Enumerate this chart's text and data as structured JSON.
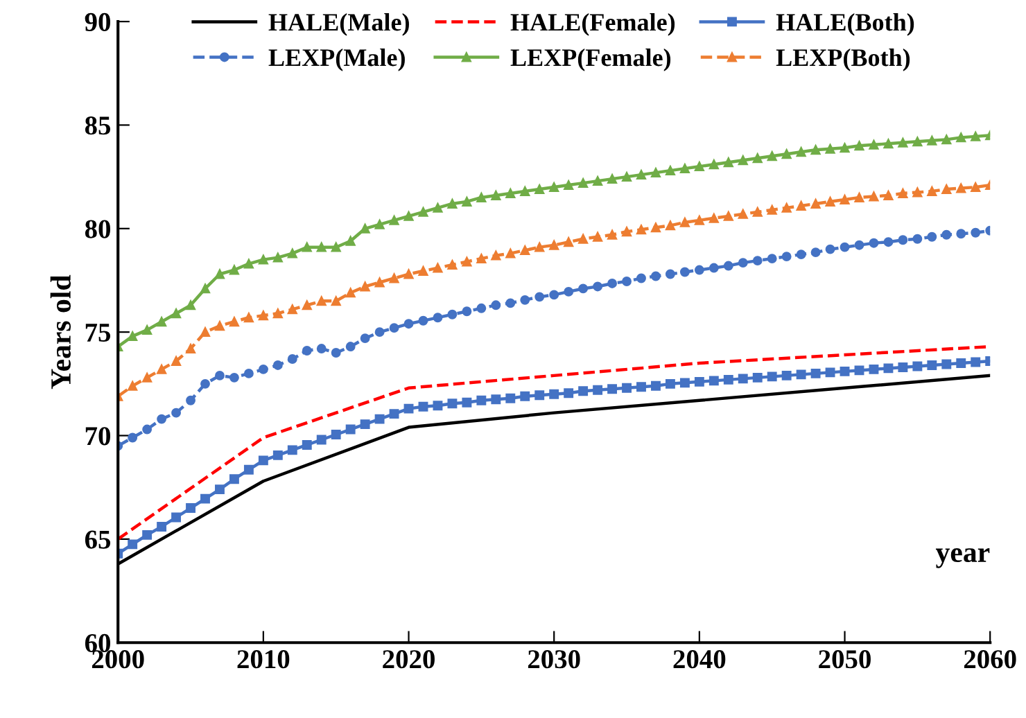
{
  "chart_data": {
    "type": "line",
    "ylabel": "Years old",
    "xlabel": "year",
    "xlim": [
      2000,
      2060
    ],
    "ylim": [
      60,
      90
    ],
    "xticks": [
      2000,
      2010,
      2020,
      2030,
      2040,
      2050,
      2060
    ],
    "yticks": [
      60,
      65,
      70,
      75,
      80,
      85,
      90
    ],
    "grid": false,
    "legend": "top",
    "x": [
      2000,
      2001,
      2002,
      2003,
      2004,
      2005,
      2006,
      2007,
      2008,
      2009,
      2010,
      2011,
      2012,
      2013,
      2014,
      2015,
      2016,
      2017,
      2018,
      2019,
      2020,
      2021,
      2022,
      2023,
      2024,
      2025,
      2026,
      2027,
      2028,
      2029,
      2030,
      2031,
      2032,
      2033,
      2034,
      2035,
      2036,
      2037,
      2038,
      2039,
      2040,
      2041,
      2042,
      2043,
      2044,
      2045,
      2046,
      2047,
      2048,
      2049,
      2050,
      2051,
      2052,
      2053,
      2054,
      2055,
      2056,
      2057,
      2058,
      2059,
      2060
    ],
    "series": [
      {
        "name": "HALE(Male)",
        "color": "#000000",
        "line_style": "solid",
        "marker": "none",
        "x": [
          2000,
          2010,
          2020,
          2030,
          2040,
          2050,
          2060
        ],
        "values": [
          63.8,
          67.8,
          70.4,
          71.1,
          71.7,
          72.3,
          72.9
        ]
      },
      {
        "name": "HALE(Female)",
        "color": "#ff0000",
        "line_style": "dashed",
        "marker": "none",
        "x": [
          2000,
          2010,
          2020,
          2030,
          2040,
          2050,
          2060
        ],
        "values": [
          65.0,
          69.9,
          72.3,
          72.9,
          73.5,
          73.9,
          74.3
        ]
      },
      {
        "name": "HALE(Both)",
        "color": "#4472c4",
        "line_style": "solid",
        "marker": "square",
        "values": [
          64.3,
          64.75,
          65.2,
          65.6,
          66.05,
          66.5,
          66.95,
          67.4,
          67.9,
          68.35,
          68.8,
          69.05,
          69.3,
          69.55,
          69.8,
          70.05,
          70.3,
          70.55,
          70.8,
          71.05,
          71.3,
          71.4,
          71.45,
          71.55,
          71.6,
          71.7,
          71.75,
          71.8,
          71.9,
          71.95,
          72.0,
          72.05,
          72.15,
          72.2,
          72.25,
          72.3,
          72.35,
          72.4,
          72.5,
          72.55,
          72.6,
          72.65,
          72.7,
          72.75,
          72.8,
          72.85,
          72.9,
          72.95,
          73.0,
          73.05,
          73.1,
          73.15,
          73.2,
          73.25,
          73.3,
          73.35,
          73.4,
          73.45,
          73.5,
          73.55,
          73.6
        ]
      },
      {
        "name": "LEXP(Male)",
        "color": "#4472c4",
        "line_style": "dashed",
        "marker": "circle",
        "values": [
          69.5,
          69.9,
          70.3,
          70.8,
          71.1,
          71.7,
          72.5,
          72.9,
          72.8,
          73.0,
          73.2,
          73.4,
          73.7,
          74.1,
          74.2,
          74.0,
          74.3,
          74.7,
          75.0,
          75.2,
          75.4,
          75.55,
          75.7,
          75.85,
          76.0,
          76.15,
          76.3,
          76.4,
          76.55,
          76.7,
          76.8,
          76.95,
          77.1,
          77.2,
          77.35,
          77.45,
          77.6,
          77.7,
          77.8,
          77.9,
          78.0,
          78.1,
          78.2,
          78.35,
          78.45,
          78.55,
          78.65,
          78.75,
          78.85,
          79.0,
          79.1,
          79.2,
          79.3,
          79.35,
          79.45,
          79.5,
          79.6,
          79.7,
          79.75,
          79.8,
          79.9
        ]
      },
      {
        "name": "LEXP(Female)",
        "color": "#70ad47",
        "line_style": "solid",
        "marker": "triangle",
        "values": [
          74.3,
          74.8,
          75.1,
          75.5,
          75.9,
          76.3,
          77.1,
          77.8,
          78.0,
          78.3,
          78.5,
          78.6,
          78.8,
          79.1,
          79.1,
          79.1,
          79.4,
          80.0,
          80.2,
          80.4,
          80.6,
          80.8,
          81.0,
          81.2,
          81.3,
          81.5,
          81.6,
          81.7,
          81.8,
          81.9,
          82.0,
          82.1,
          82.2,
          82.3,
          82.4,
          82.5,
          82.6,
          82.7,
          82.8,
          82.9,
          83.0,
          83.1,
          83.2,
          83.3,
          83.4,
          83.5,
          83.6,
          83.7,
          83.8,
          83.85,
          83.9,
          84.0,
          84.05,
          84.1,
          84.15,
          84.2,
          84.25,
          84.3,
          84.4,
          84.45,
          84.5
        ]
      },
      {
        "name": "LEXP(Both)",
        "color": "#ed7d31",
        "line_style": "dashed",
        "marker": "triangle",
        "values": [
          71.9,
          72.4,
          72.8,
          73.2,
          73.6,
          74.2,
          75.0,
          75.3,
          75.5,
          75.7,
          75.8,
          75.9,
          76.1,
          76.3,
          76.5,
          76.5,
          76.9,
          77.2,
          77.4,
          77.6,
          77.8,
          77.95,
          78.1,
          78.25,
          78.4,
          78.55,
          78.7,
          78.8,
          78.95,
          79.1,
          79.2,
          79.35,
          79.5,
          79.6,
          79.7,
          79.85,
          79.95,
          80.05,
          80.15,
          80.3,
          80.4,
          80.5,
          80.6,
          80.7,
          80.8,
          80.9,
          81.0,
          81.1,
          81.2,
          81.3,
          81.4,
          81.5,
          81.55,
          81.6,
          81.7,
          81.75,
          81.8,
          81.9,
          81.95,
          82.0,
          82.1
        ]
      }
    ]
  }
}
